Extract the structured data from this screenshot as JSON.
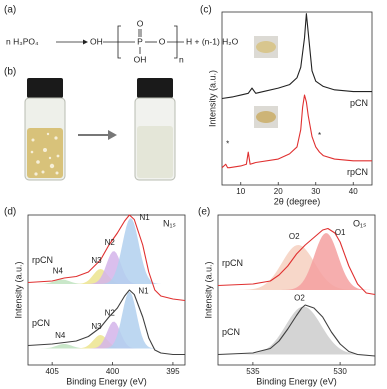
{
  "panel_a": {
    "label": "(a)",
    "reactant": "n H₃PO₄",
    "oh_left": "OH",
    "p": "P",
    "o_top": "O",
    "oh_bottom": "OH",
    "o_chain": "O",
    "n": "n",
    "product": "H + (n-1) H₂O"
  },
  "panel_b": {
    "label": "(b)"
  },
  "chart_data": [
    {
      "type": "line",
      "panel": "(c)",
      "xlabel": "2θ (degree)",
      "ylabel": "Intensity (a.u.)",
      "xlim": [
        5,
        45
      ],
      "ylim": [
        0,
        100
      ],
      "xticks": [
        10,
        20,
        30,
        40
      ],
      "series": [
        {
          "name": "pCN",
          "color": "#222222",
          "x": [
            5,
            8,
            10,
            12,
            13,
            14,
            16,
            20,
            23,
            25,
            26,
            27,
            27.5,
            28,
            29,
            30,
            32,
            35,
            40,
            45
          ],
          "values": [
            50,
            51,
            52,
            53,
            56,
            53,
            54,
            56,
            58,
            62,
            68,
            85,
            99,
            88,
            66,
            60,
            57,
            55,
            54,
            54
          ]
        },
        {
          "name": "rpCN",
          "color": "#e03030",
          "x": [
            5,
            6,
            6.5,
            7,
            10,
            11.5,
            12,
            12.5,
            14,
            20,
            23,
            25,
            26,
            26.5,
            27,
            27.5,
            28,
            29,
            30,
            31,
            32,
            35,
            40,
            45
          ],
          "values": [
            10,
            12,
            10,
            10,
            11,
            12,
            19,
            12,
            13,
            15,
            18,
            22,
            32,
            45,
            52,
            48,
            40,
            28,
            22,
            19,
            17,
            15,
            14,
            14
          ]
        }
      ],
      "annotations": [
        {
          "text": "*",
          "x": 6.5,
          "y": 20,
          "color": "#4a8fd0"
        },
        {
          "text": "*",
          "x": 31,
          "y": 25,
          "color": "#4a8fd0"
        }
      ]
    },
    {
      "type": "line",
      "panel": "(d)",
      "title": "N₁ₛ",
      "xlabel": "Binding Energy (eV)",
      "ylabel": "Intensity (a.u.)",
      "xlim": [
        407,
        394
      ],
      "ylim": [
        0,
        100
      ],
      "xticks": [
        405,
        400,
        395
      ],
      "series": [
        {
          "name": "rpCN",
          "color": "#e03030",
          "x": [
            407,
            405,
            404,
            403,
            402,
            401,
            400.3,
            399.6,
            399,
            398.6,
            398.2,
            397.5,
            397,
            396.5,
            396,
            395,
            394
          ],
          "values": [
            55,
            56,
            58,
            59,
            62,
            70,
            80,
            88,
            96,
            100,
            97,
            80,
            62,
            50,
            46,
            44,
            43
          ],
          "components": [
            {
              "name": "N4",
              "color": "#bfe3bf",
              "label_color": "#3a8a3a",
              "center": 404.2,
              "height": 3,
              "fwhm": 1.5,
              "base": 54
            },
            {
              "name": "N3",
              "color": "#ece48e",
              "label_color": "#a09020",
              "center": 401,
              "height": 10,
              "fwhm": 1.4,
              "base": 54
            },
            {
              "name": "N2",
              "color": "#d4b4ea",
              "label_color": "#8040a0",
              "center": 399.9,
              "height": 22,
              "fwhm": 1.4,
              "base": 54
            },
            {
              "name": "N1",
              "color": "#b2d0ee",
              "label_color": "#2060a0",
              "center": 398.5,
              "height": 44,
              "fwhm": 1.6,
              "base": 54
            }
          ]
        },
        {
          "name": "pCN",
          "color": "#404040",
          "x": [
            407,
            405,
            404,
            403,
            402,
            401,
            400.3,
            399.6,
            399,
            398.6,
            398.2,
            397.5,
            397,
            396.5,
            396,
            395,
            394
          ],
          "values": [
            13,
            14,
            15,
            16,
            19,
            25,
            32,
            38,
            46,
            50,
            47,
            32,
            18,
            10,
            8,
            7,
            7
          ],
          "components": [
            {
              "name": "N4",
              "color": "#bfe3bf",
              "label_color": "#3a8a3a",
              "center": 404,
              "height": 3,
              "fwhm": 1.5,
              "base": 11
            },
            {
              "name": "N3",
              "color": "#ece48e",
              "label_color": "#a09020",
              "center": 401,
              "height": 9,
              "fwhm": 1.4,
              "base": 11
            },
            {
              "name": "N2",
              "color": "#d4b4ea",
              "label_color": "#8040a0",
              "center": 399.9,
              "height": 18,
              "fwhm": 1.3,
              "base": 11
            },
            {
              "name": "N1",
              "color": "#b2d0ee",
              "label_color": "#2060a0",
              "center": 398.6,
              "height": 38,
              "fwhm": 1.4,
              "base": 11
            }
          ]
        }
      ]
    },
    {
      "type": "line",
      "panel": "(e)",
      "title": "O₁ₛ",
      "xlabel": "Binding Energy (eV)",
      "ylabel": "Intensity (a.u.)",
      "xlim": [
        537,
        528
      ],
      "ylim": [
        0,
        100
      ],
      "xticks": [
        535,
        530
      ],
      "series": [
        {
          "name": "rpCN",
          "color": "#e03030",
          "x": [
            537,
            535,
            534,
            533.5,
            533,
            532.5,
            532,
            531.5,
            531,
            530.7,
            530.3,
            530,
            529.5,
            529,
            528.5,
            528
          ],
          "values": [
            53,
            54,
            56,
            60,
            66,
            74,
            80,
            85,
            90,
            91,
            88,
            82,
            66,
            54,
            48,
            47
          ],
          "components": [
            {
              "name": "O2",
              "color": "#f6d0c0",
              "label_color": "#c87858",
              "center": 532.4,
              "height": 30,
              "fwhm": 2.2,
              "base": 50
            },
            {
              "name": "O1",
              "color": "#f5a0a0",
              "label_color": "#d84848",
              "center": 530.8,
              "height": 38,
              "fwhm": 1.6,
              "base": 50
            }
          ]
        },
        {
          "name": "pCN",
          "color": "#404040",
          "x": [
            537,
            535,
            534,
            533.5,
            533,
            532.5,
            532.2,
            532,
            531.5,
            531,
            530.5,
            530,
            529.5,
            529,
            528
          ],
          "values": [
            7,
            8,
            11,
            16,
            24,
            33,
            38,
            40,
            38,
            32,
            22,
            14,
            9,
            7,
            6
          ],
          "components": [
            {
              "name": "O2",
              "color": "#cccccc",
              "label_color": "#999999",
              "center": 532.1,
              "height": 32,
              "fwhm": 2.4,
              "base": 7
            }
          ]
        }
      ]
    }
  ]
}
